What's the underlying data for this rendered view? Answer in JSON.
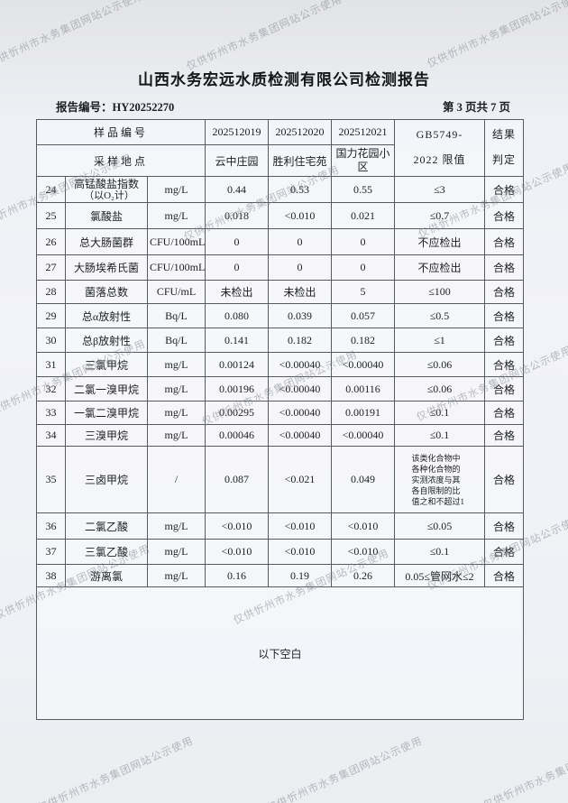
{
  "watermark": {
    "text": "仅供忻州市水务集团网站公示使用"
  },
  "header": {
    "title": "山西水务宏远水质检测有限公司检测报告",
    "report_no_label": "报告编号：",
    "report_no": "HY20252270",
    "page_info": "第 3 页共 7 页"
  },
  "table": {
    "head": {
      "sample_no_label": "样品编号",
      "location_label": "采样地点",
      "sample_nos": [
        "202512019",
        "202512020",
        "202512021"
      ],
      "locations": [
        "云中庄园",
        "胜利住宅苑",
        "国力花园小区"
      ],
      "limit_line1": "GB5749-",
      "limit_line2": "2022 限值",
      "result_line1": "结果",
      "result_line2": "判定"
    },
    "rows": [
      {
        "no": "24",
        "name": "高锰酸盐指数",
        "name2": "（以O₂计）",
        "unit": "mg/L",
        "v1": "0.44",
        "v2": "0.53",
        "v3": "0.55",
        "limit": "≤3",
        "verdict": "合格"
      },
      {
        "no": "25",
        "name": "氯酸盐",
        "unit": "mg/L",
        "v1": "0.018",
        "v2": "<0.010",
        "v3": "0.021",
        "limit": "≤0.7",
        "verdict": "合格"
      },
      {
        "no": "26",
        "name": "总大肠菌群",
        "unit": "CFU/100mL",
        "v1": "0",
        "v2": "0",
        "v3": "0",
        "limit": "不应检出",
        "verdict": "合格"
      },
      {
        "no": "27",
        "name": "大肠埃希氏菌",
        "unit": "CFU/100mL",
        "v1": "0",
        "v2": "0",
        "v3": "0",
        "limit": "不应检出",
        "verdict": "合格"
      },
      {
        "no": "28",
        "name": "菌落总数",
        "unit": "CFU/mL",
        "v1": "未检出",
        "v2": "未检出",
        "v3": "5",
        "limit": "≤100",
        "verdict": "合格"
      },
      {
        "no": "29",
        "name": "总α放射性",
        "unit": "Bq/L",
        "v1": "0.080",
        "v2": "0.039",
        "v3": "0.057",
        "limit": "≤0.5",
        "verdict": "合格"
      },
      {
        "no": "30",
        "name": "总β放射性",
        "unit": "Bq/L",
        "v1": "0.141",
        "v2": "0.182",
        "v3": "0.182",
        "limit": "≤1",
        "verdict": "合格"
      },
      {
        "no": "31",
        "name": "三氯甲烷",
        "unit": "mg/L",
        "v1": "0.00124",
        "v2": "<0.00040",
        "v3": "<0.00040",
        "limit": "≤0.06",
        "verdict": "合格"
      },
      {
        "no": "32",
        "name": "二氯一溴甲烷",
        "unit": "mg/L",
        "v1": "0.00196",
        "v2": "<0.00040",
        "v3": "0.00116",
        "limit": "≤0.06",
        "verdict": "合格"
      },
      {
        "no": "33",
        "name": "一氯二溴甲烷",
        "unit": "mg/L",
        "v1": "0.00295",
        "v2": "<0.00040",
        "v3": "0.00191",
        "limit": "≤0.1",
        "verdict": "合格"
      },
      {
        "no": "34",
        "name": "三溴甲烷",
        "unit": "mg/L",
        "v1": "0.00046",
        "v2": "<0.00040",
        "v3": "<0.00040",
        "limit": "≤0.1",
        "verdict": "合格"
      },
      {
        "no": "35",
        "name": "三卤甲烷",
        "unit": "/",
        "v1": "0.087",
        "v2": "<0.021",
        "v3": "0.049",
        "limit": "该类化合物中各种化合物的实测浓度与其各自限制的比值之和不超过1",
        "verdict": "合格"
      },
      {
        "no": "36",
        "name": "二氯乙酸",
        "unit": "mg/L",
        "v1": "<0.010",
        "v2": "<0.010",
        "v3": "<0.010",
        "limit": "≤0.05",
        "verdict": "合格"
      },
      {
        "no": "37",
        "name": "三氯乙酸",
        "unit": "mg/L",
        "v1": "<0.010",
        "v2": "<0.010",
        "v3": "<0.010",
        "limit": "≤0.1",
        "verdict": "合格"
      },
      {
        "no": "38",
        "name": "游离氯",
        "unit": "mg/L",
        "v1": "0.16",
        "v2": "0.19",
        "v3": "0.26",
        "limit": "0.05≤管网水≤2",
        "verdict": "合格"
      }
    ],
    "footer_note": "以下空白"
  }
}
